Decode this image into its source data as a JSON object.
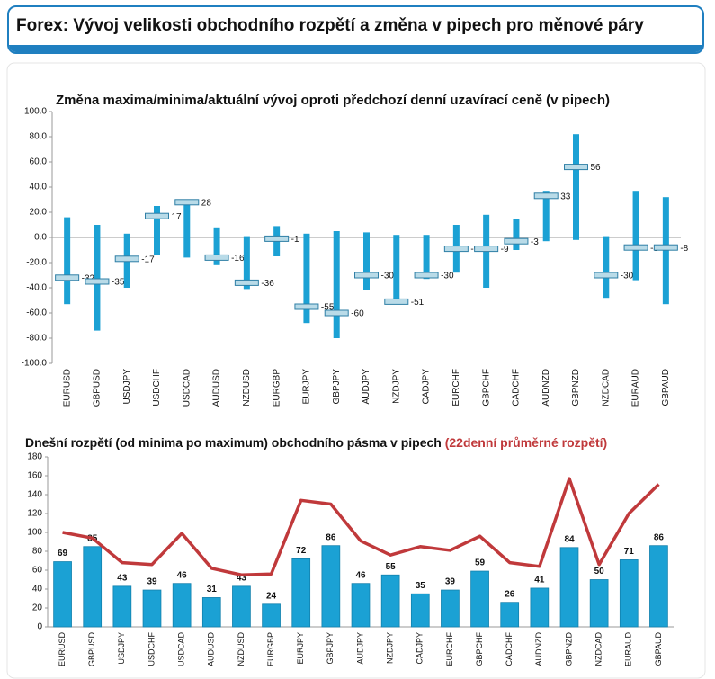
{
  "header": {
    "title": "Forex: Vývoj velikosti obchodního rozpětí a změna v pipech pro měnové páry"
  },
  "chart_data": [
    {
      "type": "range",
      "title": "Změna maxima/minima/aktuální vývoj oproti předchozí denní uzavírací ceně (v pipech)",
      "categories": [
        "EURUSD",
        "GBPUSD",
        "USDJPY",
        "USDCHF",
        "USDCAD",
        "AUDUSD",
        "NZDUSD",
        "EURGBP",
        "EURJPY",
        "GBPJPY",
        "AUDJPY",
        "NZDJPY",
        "CADJPY",
        "EURCHF",
        "GBPCHF",
        "CADCHF",
        "AUDNZD",
        "GBPNZD",
        "NZDCAD",
        "EURAUD",
        "GBPAUD"
      ],
      "high": [
        16,
        10,
        3,
        25,
        30,
        8,
        1,
        9,
        3,
        5,
        4,
        2,
        2,
        10,
        18,
        15,
        37,
        82,
        1,
        37,
        32
      ],
      "low": [
        -53,
        -74,
        -40,
        -14,
        -16,
        -22,
        -41,
        -15,
        -68,
        -80,
        -42,
        -53,
        -33,
        -28,
        -40,
        -10,
        -3,
        -2,
        -48,
        -34,
        -53
      ],
      "values": [
        -32,
        -35,
        -17,
        17,
        28,
        -16,
        -36,
        -1,
        -55,
        -60,
        -30,
        -51,
        -30,
        -9,
        -9,
        -3,
        33,
        56,
        -30,
        -8,
        -8
      ],
      "color": "#1ba1d4",
      "ylim": [
        -100,
        100
      ],
      "yticks": [
        {
          "value": -100,
          "label": "-100.0"
        },
        {
          "value": -80,
          "label": "-80.0"
        },
        {
          "value": -60,
          "label": "-60.0"
        },
        {
          "value": -40,
          "label": "-40.0"
        },
        {
          "value": -20,
          "label": "-20.0"
        },
        {
          "value": 0,
          "label": "0.0"
        },
        {
          "value": 20,
          "label": "20.0"
        },
        {
          "value": 40,
          "label": "40.0"
        },
        {
          "value": 60,
          "label": "60.0"
        },
        {
          "value": 80,
          "label": "80.0"
        },
        {
          "value": 100,
          "label": "100.0"
        }
      ]
    },
    {
      "type": "bar",
      "title": "Dnešní rozpětí (od minima po maximum) obchodního pásma v pipech",
      "title_highlight": "(22denní průměrné rozpětí)",
      "categories": [
        "EURUSD",
        "GBPUSD",
        "USDJPY",
        "USDCHF",
        "USDCAD",
        "AUDUSD",
        "NZDUSD",
        "EURGBP",
        "EURJPY",
        "GBPJPY",
        "AUDJPY",
        "NZDJPY",
        "CADJPY",
        "EURCHF",
        "GBPCHF",
        "CADCHF",
        "AUDNZD",
        "GBPNZD",
        "NZDCAD",
        "EURAUD",
        "GBPAUD"
      ],
      "series": [
        {
          "type": "bar",
          "color": "#1ba1d4",
          "values": [
            69,
            85,
            43,
            39,
            46,
            31,
            43,
            24,
            72,
            86,
            46,
            55,
            35,
            39,
            59,
            26,
            41,
            84,
            50,
            71,
            86
          ]
        },
        {
          "type": "line",
          "color": "#c0393b",
          "values": [
            100,
            94,
            68,
            66,
            99,
            62,
            55,
            56,
            134,
            130,
            91,
            76,
            85,
            81,
            96,
            68,
            64,
            157,
            66,
            120,
            151
          ]
        }
      ],
      "ylim": [
        0,
        180
      ],
      "yticks": [
        0,
        20,
        40,
        60,
        80,
        100,
        120,
        140,
        160,
        180
      ]
    }
  ]
}
